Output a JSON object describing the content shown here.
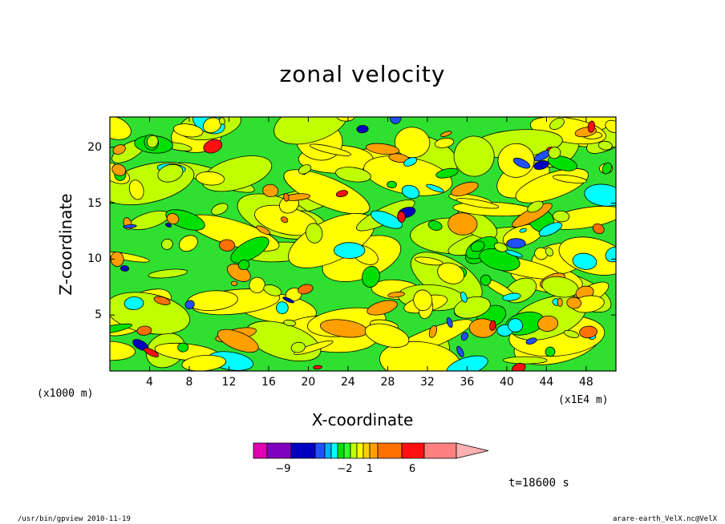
{
  "chart_data": {
    "type": "heatmap",
    "title": "zonal velocity",
    "xlabel": "X-coordinate",
    "ylabel": "Z-coordinate",
    "x_unit": "(x1E4 m)",
    "y_unit": "(x1000 m)",
    "x_ticks": [
      4,
      8,
      12,
      16,
      20,
      24,
      28,
      32,
      36,
      40,
      44,
      48
    ],
    "y_ticks": [
      5,
      10,
      15,
      20
    ],
    "xlim": [
      0,
      51
    ],
    "ylim": [
      0,
      22.7
    ],
    "colorbar": {
      "levels": [
        -9,
        -2,
        1,
        6
      ],
      "colors": [
        "#e000b0",
        "#8000c0",
        "#0000c0",
        "#2050ff",
        "#00b0ff",
        "#00ffff",
        "#00e000",
        "#30ff30",
        "#c0ff00",
        "#ffff00",
        "#ffd000",
        "#ffa000",
        "#ff7000",
        "#ff1010",
        "#ff8080",
        "#ffb0b0"
      ]
    }
  },
  "time_label": "t=18600 s",
  "footer_left": "/usr/bin/gpview  2010-11-19",
  "footer_right": "arare-earth_VelX.nc@VelX"
}
